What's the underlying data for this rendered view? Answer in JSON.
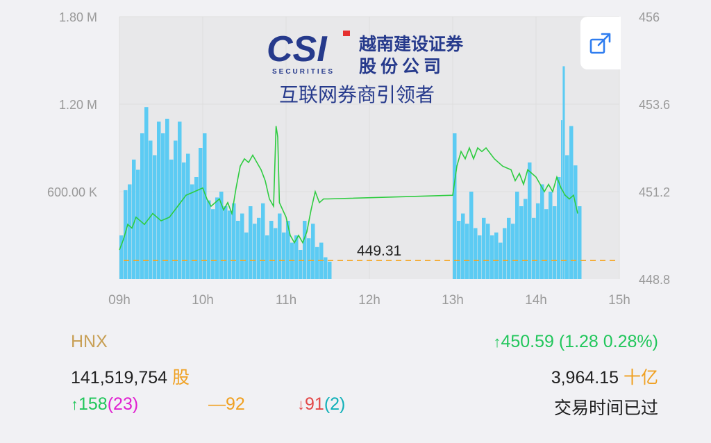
{
  "logo": {
    "letters": "CSI",
    "sub": "SECURITIES",
    "name_line1": "越南建设证券",
    "name_line2": "股份公司",
    "slogan": "互联网券商引领者"
  },
  "chart_data": {
    "type": "intraday",
    "x_ticks": [
      "09h",
      "10h",
      "11h",
      "12h",
      "13h",
      "14h",
      "15h"
    ],
    "x_range_hours": [
      9,
      15
    ],
    "volume_axis": {
      "ticks": [
        "1.80 M",
        "1.20 M",
        "600.00 K"
      ],
      "values": [
        1800000,
        1200000,
        600000
      ],
      "range": [
        0,
        1800000
      ]
    },
    "price_axis": {
      "ticks": [
        "456",
        "453.6",
        "451.2",
        "448.8"
      ],
      "values": [
        456,
        453.6,
        451.2,
        448.8
      ],
      "range": [
        448.8,
        456
      ]
    },
    "reference_price": 449.31,
    "reference_label": "449.31",
    "volume_series": {
      "morning": [
        {
          "t": 9.0,
          "v": 300000
        },
        {
          "t": 9.05,
          "v": 610000
        },
        {
          "t": 9.1,
          "v": 650000
        },
        {
          "t": 9.15,
          "v": 820000
        },
        {
          "t": 9.2,
          "v": 750000
        },
        {
          "t": 9.25,
          "v": 1000000
        },
        {
          "t": 9.3,
          "v": 1180000
        },
        {
          "t": 9.35,
          "v": 950000
        },
        {
          "t": 9.4,
          "v": 850000
        },
        {
          "t": 9.45,
          "v": 1080000
        },
        {
          "t": 9.5,
          "v": 1000000
        },
        {
          "t": 9.55,
          "v": 1100000
        },
        {
          "t": 9.6,
          "v": 820000
        },
        {
          "t": 9.65,
          "v": 950000
        },
        {
          "t": 9.7,
          "v": 1080000
        },
        {
          "t": 9.75,
          "v": 800000
        },
        {
          "t": 9.8,
          "v": 860000
        },
        {
          "t": 9.85,
          "v": 650000
        },
        {
          "t": 9.9,
          "v": 700000
        },
        {
          "t": 9.95,
          "v": 900000
        },
        {
          "t": 10.0,
          "v": 1000000
        },
        {
          "t": 10.05,
          "v": 540000
        },
        {
          "t": 10.1,
          "v": 480000
        },
        {
          "t": 10.15,
          "v": 560000
        },
        {
          "t": 10.2,
          "v": 600000
        },
        {
          "t": 10.25,
          "v": 500000
        },
        {
          "t": 10.3,
          "v": 470000
        },
        {
          "t": 10.35,
          "v": 520000
        },
        {
          "t": 10.4,
          "v": 400000
        },
        {
          "t": 10.45,
          "v": 450000
        },
        {
          "t": 10.5,
          "v": 320000
        },
        {
          "t": 10.55,
          "v": 500000
        },
        {
          "t": 10.6,
          "v": 380000
        },
        {
          "t": 10.65,
          "v": 420000
        },
        {
          "t": 10.7,
          "v": 520000
        },
        {
          "t": 10.75,
          "v": 300000
        },
        {
          "t": 10.8,
          "v": 400000
        },
        {
          "t": 10.85,
          "v": 350000
        },
        {
          "t": 10.9,
          "v": 450000
        },
        {
          "t": 10.95,
          "v": 320000
        },
        {
          "t": 11.0,
          "v": 400000
        },
        {
          "t": 11.05,
          "v": 250000
        },
        {
          "t": 11.1,
          "v": 300000
        },
        {
          "t": 11.15,
          "v": 200000
        },
        {
          "t": 11.2,
          "v": 400000
        },
        {
          "t": 11.25,
          "v": 280000
        },
        {
          "t": 11.3,
          "v": 380000
        },
        {
          "t": 11.35,
          "v": 220000
        },
        {
          "t": 11.4,
          "v": 250000
        },
        {
          "t": 11.45,
          "v": 150000
        },
        {
          "t": 11.5,
          "v": 120000
        }
      ],
      "afternoon": [
        {
          "t": 13.0,
          "v": 1000000
        },
        {
          "t": 13.05,
          "v": 400000
        },
        {
          "t": 13.1,
          "v": 450000
        },
        {
          "t": 13.15,
          "v": 380000
        },
        {
          "t": 13.2,
          "v": 600000
        },
        {
          "t": 13.25,
          "v": 350000
        },
        {
          "t": 13.3,
          "v": 300000
        },
        {
          "t": 13.35,
          "v": 420000
        },
        {
          "t": 13.4,
          "v": 380000
        },
        {
          "t": 13.45,
          "v": 300000
        },
        {
          "t": 13.5,
          "v": 320000
        },
        {
          "t": 13.55,
          "v": 250000
        },
        {
          "t": 13.6,
          "v": 350000
        },
        {
          "t": 13.65,
          "v": 420000
        },
        {
          "t": 13.7,
          "v": 380000
        },
        {
          "t": 13.75,
          "v": 600000
        },
        {
          "t": 13.8,
          "v": 500000
        },
        {
          "t": 13.85,
          "v": 550000
        },
        {
          "t": 13.9,
          "v": 800000
        },
        {
          "t": 13.95,
          "v": 420000
        },
        {
          "t": 14.0,
          "v": 520000
        },
        {
          "t": 14.05,
          "v": 650000
        },
        {
          "t": 14.1,
          "v": 480000
        },
        {
          "t": 14.15,
          "v": 600000
        },
        {
          "t": 14.2,
          "v": 500000
        },
        {
          "t": 14.25,
          "v": 700000
        },
        {
          "t": 14.3,
          "v": 1090000
        },
        {
          "t": 14.32,
          "v": 1460000
        },
        {
          "t": 14.35,
          "v": 850000
        },
        {
          "t": 14.4,
          "v": 1050000
        },
        {
          "t": 14.45,
          "v": 780000
        },
        {
          "t": 14.5,
          "v": 500000
        }
      ]
    },
    "price_series": {
      "morning": [
        {
          "t": 9.0,
          "p": 449.6
        },
        {
          "t": 9.05,
          "p": 449.9
        },
        {
          "t": 9.1,
          "p": 450.3
        },
        {
          "t": 9.15,
          "p": 450.2
        },
        {
          "t": 9.2,
          "p": 450.5
        },
        {
          "t": 9.3,
          "p": 450.3
        },
        {
          "t": 9.4,
          "p": 450.6
        },
        {
          "t": 9.5,
          "p": 450.4
        },
        {
          "t": 9.6,
          "p": 450.5
        },
        {
          "t": 9.7,
          "p": 450.8
        },
        {
          "t": 9.8,
          "p": 451.1
        },
        {
          "t": 9.9,
          "p": 451.2
        },
        {
          "t": 10.0,
          "p": 451.3
        },
        {
          "t": 10.05,
          "p": 451.0
        },
        {
          "t": 10.1,
          "p": 450.8
        },
        {
          "t": 10.2,
          "p": 451.0
        },
        {
          "t": 10.25,
          "p": 450.7
        },
        {
          "t": 10.3,
          "p": 450.9
        },
        {
          "t": 10.35,
          "p": 450.6
        },
        {
          "t": 10.4,
          "p": 451.3
        },
        {
          "t": 10.45,
          "p": 451.9
        },
        {
          "t": 10.5,
          "p": 452.1
        },
        {
          "t": 10.55,
          "p": 452.0
        },
        {
          "t": 10.6,
          "p": 452.2
        },
        {
          "t": 10.65,
          "p": 452.0
        },
        {
          "t": 10.7,
          "p": 451.8
        },
        {
          "t": 10.75,
          "p": 451.5
        },
        {
          "t": 10.8,
          "p": 451.0
        },
        {
          "t": 10.85,
          "p": 450.8
        },
        {
          "t": 10.88,
          "p": 453.0
        },
        {
          "t": 10.9,
          "p": 452.7
        },
        {
          "t": 10.92,
          "p": 450.9
        },
        {
          "t": 11.0,
          "p": 450.5
        },
        {
          "t": 11.05,
          "p": 450.0
        },
        {
          "t": 11.1,
          "p": 449.8
        },
        {
          "t": 11.15,
          "p": 450.0
        },
        {
          "t": 11.2,
          "p": 449.8
        },
        {
          "t": 11.25,
          "p": 450.1
        },
        {
          "t": 11.3,
          "p": 450.7
        },
        {
          "t": 11.35,
          "p": 451.2
        },
        {
          "t": 11.4,
          "p": 450.9
        },
        {
          "t": 11.45,
          "p": 451.0
        },
        {
          "t": 11.5,
          "p": 451.0
        }
      ],
      "afternoon": [
        {
          "t": 13.0,
          "p": 451.1
        },
        {
          "t": 13.05,
          "p": 451.9
        },
        {
          "t": 13.1,
          "p": 452.3
        },
        {
          "t": 13.15,
          "p": 452.1
        },
        {
          "t": 13.2,
          "p": 452.4
        },
        {
          "t": 13.25,
          "p": 452.1
        },
        {
          "t": 13.3,
          "p": 452.4
        },
        {
          "t": 13.35,
          "p": 452.3
        },
        {
          "t": 13.4,
          "p": 452.4
        },
        {
          "t": 13.5,
          "p": 452.1
        },
        {
          "t": 13.6,
          "p": 451.9
        },
        {
          "t": 13.7,
          "p": 451.8
        },
        {
          "t": 13.75,
          "p": 451.5
        },
        {
          "t": 13.8,
          "p": 451.7
        },
        {
          "t": 13.85,
          "p": 451.4
        },
        {
          "t": 13.9,
          "p": 451.8
        },
        {
          "t": 14.0,
          "p": 451.6
        },
        {
          "t": 14.05,
          "p": 451.4
        },
        {
          "t": 14.1,
          "p": 451.2
        },
        {
          "t": 14.15,
          "p": 451.4
        },
        {
          "t": 14.2,
          "p": 451.2
        },
        {
          "t": 14.25,
          "p": 451.6
        },
        {
          "t": 14.3,
          "p": 451.3
        },
        {
          "t": 14.35,
          "p": 451.1
        },
        {
          "t": 14.4,
          "p": 451.0
        },
        {
          "t": 14.45,
          "p": 451.1
        },
        {
          "t": 14.5,
          "p": 450.6
        }
      ]
    },
    "grid": true,
    "colors": {
      "volume": "#5ccbf3",
      "price": "#2ecc40",
      "reference": "#f6a623",
      "grid": "#dedede",
      "plot_bg": "#e8e8ea"
    }
  },
  "index": {
    "name": "HNX",
    "value": "450.59 (1.28 0.28%)",
    "volume": "141,519,754",
    "volume_unit": "股",
    "turnover": "3,964.15",
    "turnover_unit": "十亿",
    "up_count": "158",
    "up_ceiling": "(23)",
    "flat_count": "92",
    "down_count": "91",
    "down_floor": "(2)",
    "status": "交易时间已过"
  }
}
